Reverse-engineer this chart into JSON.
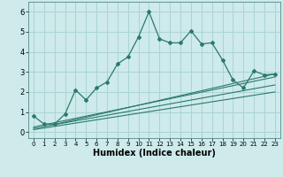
{
  "xlabel": "Humidex (Indice chaleur)",
  "ylabel": "",
  "xlim": [
    -0.5,
    23.5
  ],
  "ylim": [
    -0.3,
    6.5
  ],
  "xticks": [
    0,
    1,
    2,
    3,
    4,
    5,
    6,
    7,
    8,
    9,
    10,
    11,
    12,
    13,
    14,
    15,
    16,
    17,
    18,
    19,
    20,
    21,
    22,
    23
  ],
  "yticks": [
    0,
    1,
    2,
    3,
    4,
    5,
    6
  ],
  "bg_color": "#ceeaea",
  "grid_color": "#aad4d4",
  "line_color": "#2a7a6a",
  "main_x": [
    0,
    1,
    2,
    3,
    4,
    5,
    6,
    7,
    8,
    9,
    10,
    11,
    12,
    13,
    14,
    15,
    16,
    17,
    18,
    19,
    20,
    21,
    22,
    23
  ],
  "main_y": [
    0.8,
    0.4,
    0.4,
    0.9,
    2.1,
    1.6,
    2.2,
    2.5,
    3.4,
    3.75,
    4.75,
    6.0,
    4.65,
    4.45,
    4.45,
    5.05,
    4.4,
    4.45,
    3.6,
    2.6,
    2.2,
    3.05,
    2.85,
    2.9
  ],
  "line2_x": [
    0,
    23
  ],
  "line2_y": [
    0.25,
    2.75
  ],
  "line3_x": [
    0,
    23
  ],
  "line3_y": [
    0.18,
    2.35
  ],
  "line4_x": [
    0,
    23
  ],
  "line4_y": [
    0.12,
    2.0
  ],
  "line5_x": [
    2,
    23
  ],
  "line5_y": [
    0.38,
    2.9
  ]
}
